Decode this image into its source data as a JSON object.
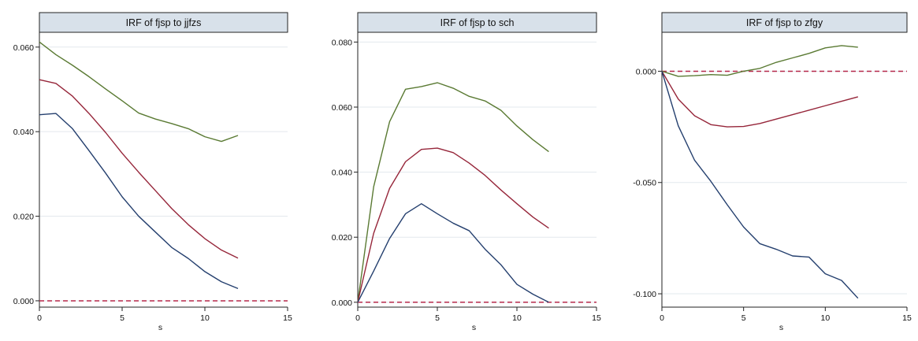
{
  "chart_data": [
    {
      "type": "line",
      "title": "IRF of fjsp to jjfzs",
      "xlabel": "s",
      "ylabel": "",
      "xlim": [
        0,
        15
      ],
      "ylim": [
        -0.0015,
        0.0635
      ],
      "xticks": [
        "0",
        "5",
        "10",
        "15"
      ],
      "yticks": [
        {
          "v": 0.0,
          "t": "0.000"
        },
        {
          "v": 0.02,
          "t": "0.020"
        },
        {
          "v": 0.04,
          "t": "0.040"
        },
        {
          "v": 0.06,
          "t": "0.060"
        }
      ],
      "grid": true,
      "legend": "none",
      "x": [
        0,
        1,
        2,
        3,
        4,
        5,
        6,
        7,
        8,
        9,
        10,
        11,
        12
      ],
      "series": [
        {
          "color": "#5a7a33",
          "values": [
            0.0612,
            0.0582,
            0.0557,
            0.053,
            0.0501,
            0.0473,
            0.0444,
            0.043,
            0.0419,
            0.0407,
            0.0388,
            0.0377,
            0.0391
          ]
        },
        {
          "color": "#96263a",
          "values": [
            0.0523,
            0.0514,
            0.0484,
            0.0443,
            0.0398,
            0.0349,
            0.0304,
            0.0261,
            0.0218,
            0.018,
            0.0147,
            0.012,
            0.0101
          ]
        },
        {
          "color": "#243f6e",
          "values": [
            0.044,
            0.0443,
            0.0407,
            0.0355,
            0.0302,
            0.0246,
            0.02,
            0.0163,
            0.0126,
            0.01,
            0.0069,
            0.0045,
            0.0029
          ]
        }
      ],
      "zero_line": {
        "y": 0.0,
        "color": "#b5294a"
      }
    },
    {
      "type": "line",
      "title": "IRF of fjsp to sch",
      "xlabel": "s",
      "ylabel": "",
      "xlim": [
        0,
        15
      ],
      "ylim": [
        -0.0015,
        0.083
      ],
      "xticks": [
        "0",
        "5",
        "10",
        "15"
      ],
      "yticks": [
        {
          "v": 0.0,
          "t": "0.000"
        },
        {
          "v": 0.02,
          "t": "0.020"
        },
        {
          "v": 0.04,
          "t": "0.040"
        },
        {
          "v": 0.06,
          "t": "0.060"
        },
        {
          "v": 0.08,
          "t": "0.080"
        }
      ],
      "grid": true,
      "legend": "none",
      "x": [
        0,
        1,
        2,
        3,
        4,
        5,
        6,
        7,
        8,
        9,
        10,
        11,
        12
      ],
      "series": [
        {
          "color": "#5a7a33",
          "values": [
            0.0,
            0.0355,
            0.0555,
            0.0655,
            0.0663,
            0.0675,
            0.0658,
            0.0633,
            0.0619,
            0.059,
            0.0542,
            0.05,
            0.0463
          ]
        },
        {
          "color": "#96263a",
          "values": [
            0.0,
            0.0212,
            0.035,
            0.0432,
            0.047,
            0.0474,
            0.046,
            0.0428,
            0.039,
            0.0345,
            0.0303,
            0.0262,
            0.0228
          ]
        },
        {
          "color": "#243f6e",
          "values": [
            0.0,
            0.0096,
            0.0196,
            0.0272,
            0.0303,
            0.0272,
            0.0243,
            0.022,
            0.0163,
            0.0115,
            0.0055,
            0.0025,
            0.0
          ]
        }
      ],
      "zero_line": {
        "y": 0.0,
        "color": "#b5294a"
      }
    },
    {
      "type": "line",
      "title": "IRF of fjsp to zfgy",
      "xlabel": "s",
      "ylabel": "",
      "xlim": [
        0,
        15
      ],
      "ylim": [
        -0.106,
        0.0175
      ],
      "xticks": [
        "0",
        "5",
        "10",
        "15"
      ],
      "yticks": [
        {
          "v": 0.0,
          "t": "0.000"
        },
        {
          "v": -0.05,
          "t": "-0.050"
        },
        {
          "v": -0.1,
          "t": "-0.100"
        }
      ],
      "grid": true,
      "legend": "none",
      "x": [
        0,
        1,
        2,
        3,
        4,
        5,
        6,
        7,
        8,
        9,
        10,
        11,
        12
      ],
      "series": [
        {
          "color": "#5a7a33",
          "values": [
            0.0,
            -0.0023,
            -0.002,
            -0.0015,
            -0.0018,
            0.0,
            0.0013,
            0.004,
            0.006,
            0.008,
            0.0105,
            0.0115,
            0.0108
          ]
        },
        {
          "color": "#96263a",
          "values": [
            0.0,
            -0.0125,
            -0.02,
            -0.024,
            -0.025,
            -0.0248,
            -0.0235,
            -0.0215,
            -0.0195,
            -0.0175,
            -0.0155,
            -0.0135,
            -0.0115
          ]
        },
        {
          "color": "#243f6e",
          "values": [
            0.0,
            -0.0245,
            -0.04,
            -0.0495,
            -0.06,
            -0.07,
            -0.0775,
            -0.08,
            -0.083,
            -0.0835,
            -0.091,
            -0.094,
            -0.102
          ]
        }
      ],
      "zero_line": {
        "y": 0.0,
        "color": "#b5294a"
      }
    }
  ]
}
